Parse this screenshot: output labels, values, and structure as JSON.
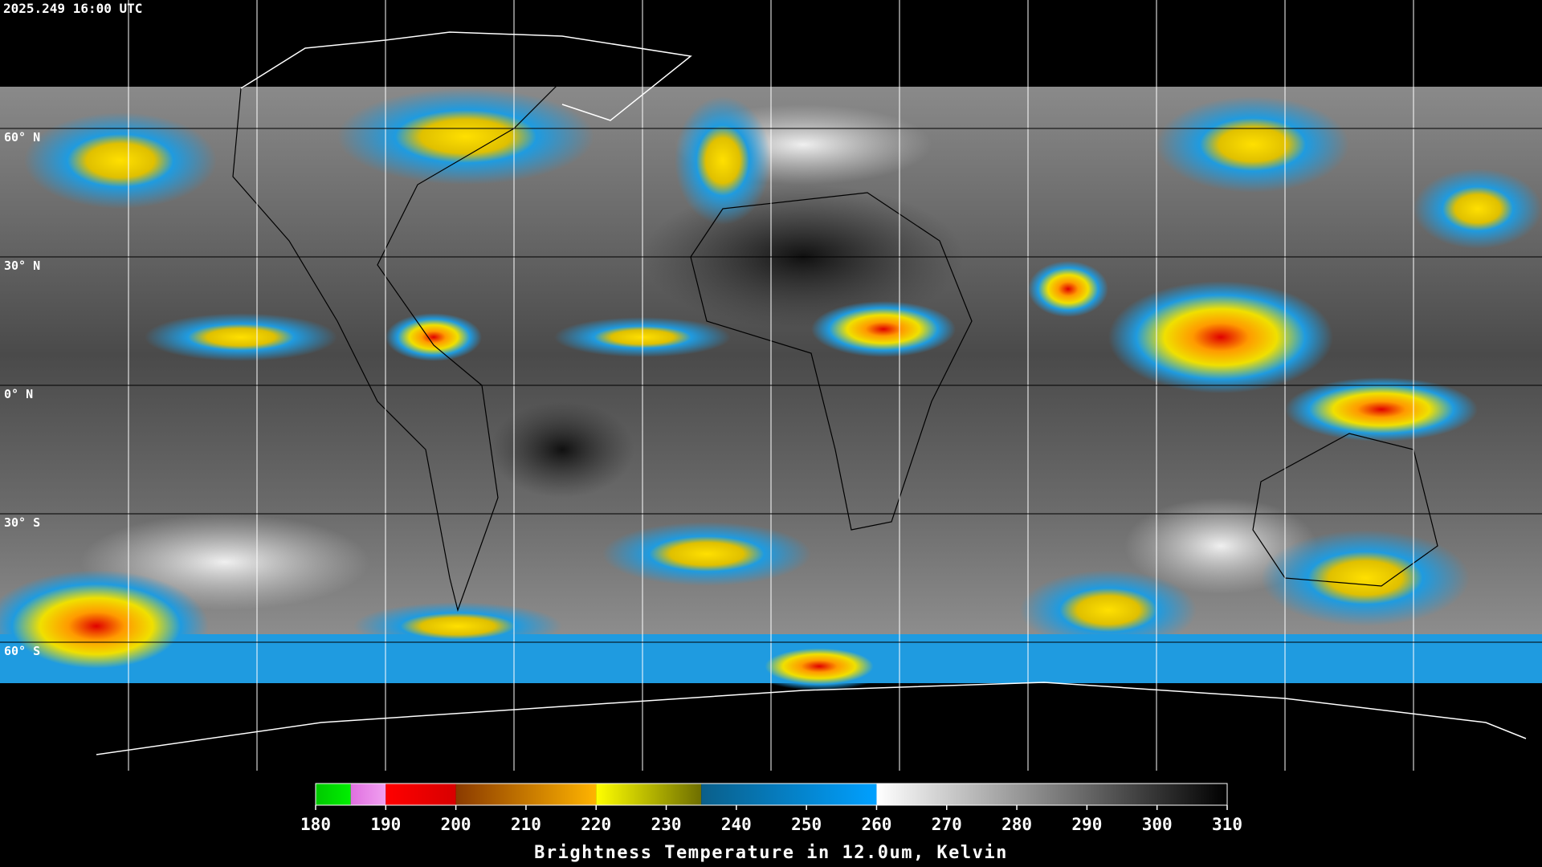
{
  "map": {
    "timestamp": "2025.249 16:00 UTC",
    "lat_lines": [
      {
        "value": 60,
        "label": "60° N"
      },
      {
        "value": 30,
        "label": "30° N"
      },
      {
        "value": 0,
        "label": "0° N"
      },
      {
        "value": -30,
        "label": "30° S"
      },
      {
        "value": -60,
        "label": "60° S"
      }
    ],
    "lon_lines": [
      -150,
      -120,
      -90,
      -60,
      -30,
      0,
      30,
      60,
      90,
      120,
      150
    ],
    "latlim": [
      90,
      -90
    ],
    "lonlim": [
      -180,
      180
    ]
  },
  "colorbar": {
    "title": "Brightness Temperature in 12.0um, Kelvin",
    "lim": [
      180,
      310
    ],
    "ticks": [
      180,
      190,
      200,
      210,
      220,
      230,
      240,
      250,
      260,
      270,
      280,
      290,
      300,
      310
    ],
    "segments": [
      {
        "from": 180,
        "to": 185,
        "colors": [
          "#00c800",
          "#00f000"
        ]
      },
      {
        "from": 185,
        "to": 190,
        "colors": [
          "#e070e0",
          "#f0a0f0"
        ]
      },
      {
        "from": 190,
        "to": 200,
        "colors": [
          "#ff0000",
          "#d80000"
        ]
      },
      {
        "from": 200,
        "to": 220,
        "colors": [
          "#8a3a00",
          "#ffb400"
        ]
      },
      {
        "from": 220,
        "to": 235,
        "colors": [
          "#ffff00",
          "#6e6e00"
        ]
      },
      {
        "from": 235,
        "to": 260,
        "colors": [
          "#0a5f8a",
          "#00a0ff"
        ]
      },
      {
        "from": 260,
        "to": 310,
        "colors": [
          "#ffffff",
          "#000000"
        ]
      }
    ]
  }
}
